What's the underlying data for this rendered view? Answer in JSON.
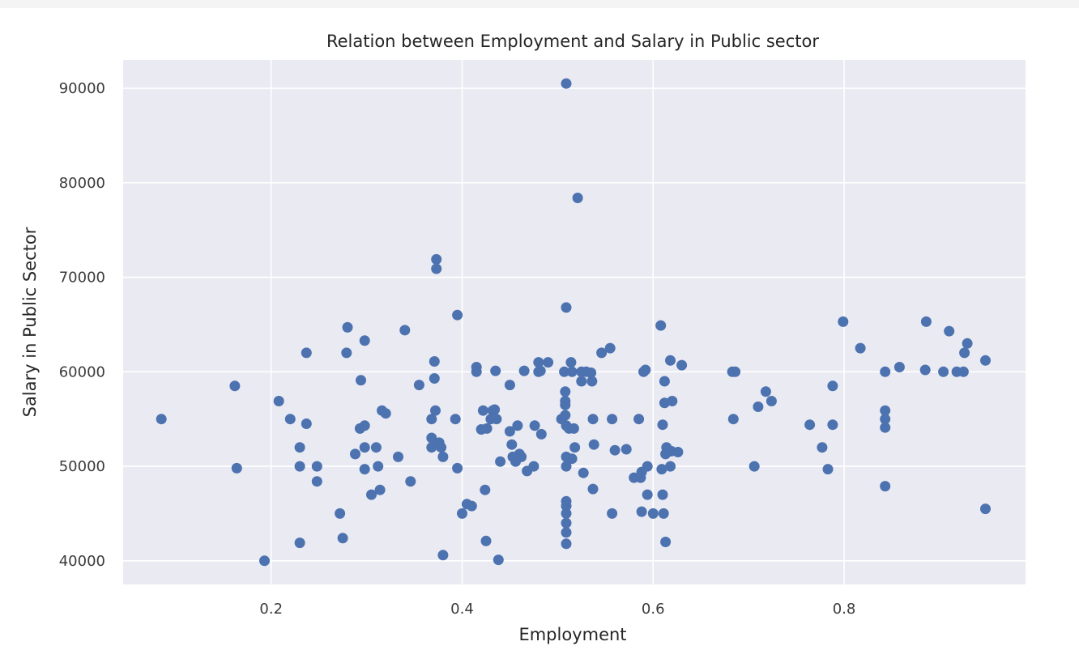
{
  "chart_data": {
    "type": "scatter",
    "title": "Relation between Employment and Salary in Public sector",
    "xlabel": "Employment",
    "ylabel": "Salary in Public Sector",
    "xlim": [
      0.045,
      0.99
    ],
    "ylim": [
      37500,
      93000
    ],
    "xticks": [
      0.2,
      0.4,
      0.6,
      0.8
    ],
    "xtick_labels": [
      "0.2",
      "0.4",
      "0.6",
      "0.8"
    ],
    "yticks": [
      40000,
      50000,
      60000,
      70000,
      80000,
      90000
    ],
    "ytick_labels": [
      "40000",
      "50000",
      "60000",
      "70000",
      "80000",
      "90000"
    ],
    "grid": true,
    "background": "#eaeaf2",
    "marker_color": "#4c72b0",
    "series": [
      {
        "points": [
          [
            0.085,
            55000
          ],
          [
            0.162,
            58500
          ],
          [
            0.164,
            49800
          ],
          [
            0.193,
            40000
          ],
          [
            0.208,
            56900
          ],
          [
            0.22,
            55000
          ],
          [
            0.23,
            52000
          ],
          [
            0.23,
            50000
          ],
          [
            0.23,
            41900
          ],
          [
            0.237,
            62000
          ],
          [
            0.237,
            54500
          ],
          [
            0.248,
            50000
          ],
          [
            0.248,
            48400
          ],
          [
            0.272,
            45000
          ],
          [
            0.275,
            42400
          ],
          [
            0.279,
            62000
          ],
          [
            0.28,
            64700
          ],
          [
            0.288,
            51300
          ],
          [
            0.293,
            54000
          ],
          [
            0.294,
            59100
          ],
          [
            0.298,
            63300
          ],
          [
            0.298,
            54300
          ],
          [
            0.298,
            52000
          ],
          [
            0.298,
            49700
          ],
          [
            0.305,
            47000
          ],
          [
            0.31,
            52000
          ],
          [
            0.312,
            50000
          ],
          [
            0.314,
            47500
          ],
          [
            0.316,
            55900
          ],
          [
            0.32,
            55600
          ],
          [
            0.333,
            51000
          ],
          [
            0.34,
            64400
          ],
          [
            0.346,
            48400
          ],
          [
            0.355,
            58600
          ],
          [
            0.368,
            55000
          ],
          [
            0.368,
            52000
          ],
          [
            0.368,
            53000
          ],
          [
            0.371,
            61100
          ],
          [
            0.371,
            59300
          ],
          [
            0.372,
            55900
          ],
          [
            0.373,
            71900
          ],
          [
            0.373,
            70900
          ],
          [
            0.376,
            52500
          ],
          [
            0.378,
            52000
          ],
          [
            0.38,
            51000
          ],
          [
            0.38,
            40600
          ],
          [
            0.393,
            55000
          ],
          [
            0.395,
            66000
          ],
          [
            0.395,
            49800
          ],
          [
            0.4,
            45000
          ],
          [
            0.405,
            46000
          ],
          [
            0.41,
            45800
          ],
          [
            0.415,
            60500
          ],
          [
            0.415,
            60000
          ],
          [
            0.42,
            53900
          ],
          [
            0.422,
            55900
          ],
          [
            0.424,
            47500
          ],
          [
            0.425,
            42100
          ],
          [
            0.426,
            54000
          ],
          [
            0.43,
            55000
          ],
          [
            0.432,
            55900
          ],
          [
            0.434,
            56000
          ],
          [
            0.435,
            60100
          ],
          [
            0.436,
            55000
          ],
          [
            0.438,
            40100
          ],
          [
            0.44,
            50500
          ],
          [
            0.45,
            58600
          ],
          [
            0.45,
            53700
          ],
          [
            0.452,
            52300
          ],
          [
            0.453,
            51000
          ],
          [
            0.456,
            50500
          ],
          [
            0.458,
            54300
          ],
          [
            0.46,
            51300
          ],
          [
            0.462,
            51000
          ],
          [
            0.465,
            60100
          ],
          [
            0.468,
            49500
          ],
          [
            0.475,
            50000
          ],
          [
            0.476,
            54300
          ],
          [
            0.48,
            61000
          ],
          [
            0.48,
            60000
          ],
          [
            0.482,
            60100
          ],
          [
            0.483,
            53400
          ],
          [
            0.49,
            61000
          ],
          [
            0.504,
            55000
          ],
          [
            0.507,
            60000
          ],
          [
            0.508,
            57900
          ],
          [
            0.508,
            56900
          ],
          [
            0.508,
            56500
          ],
          [
            0.508,
            55400
          ],
          [
            0.509,
            54300
          ],
          [
            0.509,
            51000
          ],
          [
            0.509,
            50000
          ],
          [
            0.509,
            90500
          ],
          [
            0.509,
            66800
          ],
          [
            0.509,
            46300
          ],
          [
            0.509,
            45800
          ],
          [
            0.509,
            45000
          ],
          [
            0.509,
            44000
          ],
          [
            0.509,
            43000
          ],
          [
            0.509,
            41800
          ],
          [
            0.512,
            54000
          ],
          [
            0.514,
            61000
          ],
          [
            0.515,
            60000
          ],
          [
            0.515,
            50800
          ],
          [
            0.517,
            54000
          ],
          [
            0.518,
            52000
          ],
          [
            0.521,
            78400
          ],
          [
            0.525,
            60000
          ],
          [
            0.525,
            59000
          ],
          [
            0.527,
            49300
          ],
          [
            0.53,
            60000
          ],
          [
            0.535,
            59900
          ],
          [
            0.536,
            59000
          ],
          [
            0.537,
            55000
          ],
          [
            0.537,
            47600
          ],
          [
            0.538,
            52300
          ],
          [
            0.546,
            62000
          ],
          [
            0.555,
            62500
          ],
          [
            0.557,
            55000
          ],
          [
            0.557,
            45000
          ],
          [
            0.56,
            51700
          ],
          [
            0.572,
            51800
          ],
          [
            0.58,
            48800
          ],
          [
            0.585,
            55000
          ],
          [
            0.587,
            48800
          ],
          [
            0.588,
            49400
          ],
          [
            0.588,
            45200
          ],
          [
            0.59,
            60000
          ],
          [
            0.592,
            60200
          ],
          [
            0.594,
            50000
          ],
          [
            0.594,
            47000
          ],
          [
            0.6,
            45000
          ],
          [
            0.608,
            64900
          ],
          [
            0.609,
            49700
          ],
          [
            0.61,
            54400
          ],
          [
            0.61,
            47000
          ],
          [
            0.611,
            45000
          ],
          [
            0.612,
            59000
          ],
          [
            0.612,
            56700
          ],
          [
            0.613,
            51300
          ],
          [
            0.613,
            42000
          ],
          [
            0.614,
            52000
          ],
          [
            0.618,
            61200
          ],
          [
            0.618,
            50000
          ],
          [
            0.619,
            51600
          ],
          [
            0.62,
            56900
          ],
          [
            0.626,
            51500
          ],
          [
            0.63,
            60700
          ],
          [
            0.683,
            60000
          ],
          [
            0.684,
            55000
          ],
          [
            0.686,
            60000
          ],
          [
            0.706,
            50000
          ],
          [
            0.71,
            56300
          ],
          [
            0.718,
            57900
          ],
          [
            0.724,
            56900
          ],
          [
            0.764,
            54400
          ],
          [
            0.777,
            52000
          ],
          [
            0.783,
            49700
          ],
          [
            0.788,
            58500
          ],
          [
            0.788,
            54400
          ],
          [
            0.799,
            65300
          ],
          [
            0.817,
            62500
          ],
          [
            0.843,
            60000
          ],
          [
            0.843,
            55900
          ],
          [
            0.843,
            55000
          ],
          [
            0.843,
            54100
          ],
          [
            0.843,
            47900
          ],
          [
            0.858,
            60500
          ],
          [
            0.885,
            60200
          ],
          [
            0.886,
            65300
          ],
          [
            0.904,
            60000
          ],
          [
            0.91,
            64300
          ],
          [
            0.918,
            60000
          ],
          [
            0.925,
            60000
          ],
          [
            0.926,
            62000
          ],
          [
            0.929,
            63000
          ],
          [
            0.948,
            61200
          ],
          [
            0.948,
            45500
          ]
        ]
      }
    ]
  }
}
